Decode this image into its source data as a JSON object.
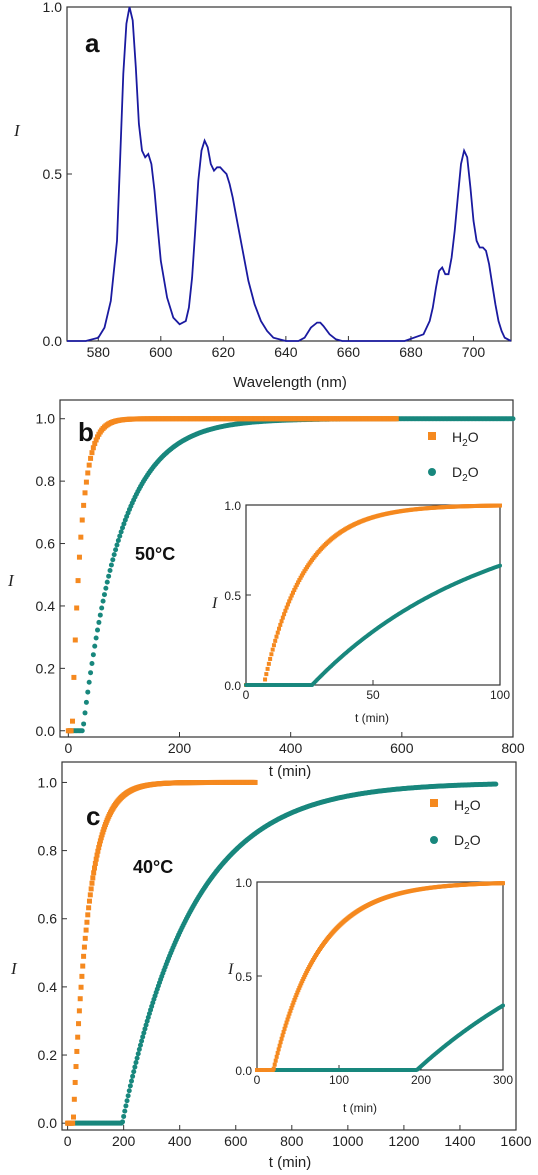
{
  "chart_data": [
    {
      "type": "line",
      "panel_label": "a",
      "xlabel": "Wavelength (nm)",
      "ylabel": "I",
      "xlim": [
        570,
        712
      ],
      "ylim": [
        0,
        1.0
      ],
      "xticks": [
        "580",
        "600",
        "620",
        "640",
        "660",
        "680",
        "700"
      ],
      "yticks": [
        "0.0",
        "0.5",
        "1.0"
      ],
      "color": "#1a1aa0",
      "series": [
        {
          "x": [
            570,
            576,
            580,
            582,
            584,
            586,
            587,
            588,
            589,
            590,
            591,
            592,
            593,
            594,
            595,
            596,
            597,
            598,
            599,
            600,
            602,
            604,
            606,
            608,
            609,
            610,
            611,
            612,
            613,
            614,
            615,
            616,
            617,
            618,
            619,
            620,
            621,
            622,
            623,
            624,
            626,
            628,
            630,
            632,
            634,
            636,
            640,
            644,
            646,
            648,
            650,
            651,
            652,
            654,
            656,
            658,
            662,
            670,
            678,
            684,
            686,
            687,
            688,
            689,
            690,
            691,
            692,
            693,
            694,
            695,
            696,
            697,
            698,
            699,
            700,
            701,
            702,
            703,
            704,
            705,
            706,
            707,
            708,
            709,
            710,
            712
          ],
          "y": [
            0.0,
            0.0,
            0.01,
            0.04,
            0.12,
            0.3,
            0.55,
            0.8,
            0.95,
            1.0,
            0.96,
            0.82,
            0.65,
            0.57,
            0.55,
            0.56,
            0.53,
            0.45,
            0.34,
            0.24,
            0.13,
            0.07,
            0.05,
            0.06,
            0.1,
            0.19,
            0.33,
            0.48,
            0.57,
            0.6,
            0.58,
            0.53,
            0.51,
            0.52,
            0.52,
            0.51,
            0.5,
            0.47,
            0.43,
            0.38,
            0.28,
            0.18,
            0.11,
            0.06,
            0.03,
            0.01,
            0.0,
            0.0,
            0.01,
            0.04,
            0.055,
            0.055,
            0.045,
            0.02,
            0.005,
            0.0,
            0.0,
            0.0,
            0.0,
            0.02,
            0.06,
            0.1,
            0.16,
            0.21,
            0.22,
            0.2,
            0.2,
            0.25,
            0.33,
            0.43,
            0.53,
            0.57,
            0.55,
            0.46,
            0.36,
            0.3,
            0.28,
            0.28,
            0.27,
            0.23,
            0.17,
            0.11,
            0.06,
            0.03,
            0.01,
            0.0
          ]
        }
      ]
    },
    {
      "type": "scatter",
      "panel_label": "b",
      "annotation": "50°C",
      "xlabel": "t (min)",
      "ylabel": "I",
      "xlim": [
        -15,
        800
      ],
      "ylim": [
        -0.02,
        1.06
      ],
      "xticks": [
        "0",
        "200",
        "400",
        "600",
        "800"
      ],
      "yticks": [
        "0.0",
        "0.2",
        "0.4",
        "0.6",
        "0.8",
        "1.0"
      ],
      "legend": [
        {
          "label": "H",
          "sub": "2",
          "tail": "O",
          "marker": "square",
          "color": "#f5891f"
        },
        {
          "label": "D",
          "sub": "2",
          "tail": "O",
          "marker": "circle",
          "color": "#18877d"
        }
      ],
      "series": [
        {
          "color": "#f5891f",
          "lag": 7,
          "tau": 16,
          "t_end": 590
        },
        {
          "color": "#18877d",
          "lag": 26,
          "tau": 68,
          "t_end": 800
        }
      ],
      "inset": {
        "xlabel": "t (min)",
        "ylabel": "I",
        "xlim": [
          0,
          100
        ],
        "ylim": [
          0,
          1.0
        ],
        "xticks": [
          "0",
          "50",
          "100"
        ],
        "yticks": [
          "0.0",
          "0.5",
          "1.0"
        ],
        "series": [
          {
            "color": "#f5891f",
            "lag": 7,
            "tau": 16,
            "t_end": 100
          },
          {
            "color": "#18877d",
            "lag": 26,
            "tau": 68,
            "t_end": 100
          }
        ]
      }
    },
    {
      "type": "scatter",
      "panel_label": "c",
      "annotation": "40°C",
      "xlabel": "t (min)",
      "ylabel": "I",
      "xlim": [
        -20,
        1600
      ],
      "ylim": [
        -0.02,
        1.06
      ],
      "xticks": [
        "0",
        "200",
        "400",
        "600",
        "800",
        "1000",
        "1200",
        "1400",
        "1600"
      ],
      "yticks": [
        "0.0",
        "0.2",
        "0.4",
        "0.6",
        "0.8",
        "1.0"
      ],
      "legend": [
        {
          "label": "H",
          "sub": "2",
          "tail": "O",
          "marker": "square",
          "color": "#f5891f"
        },
        {
          "label": "D",
          "sub": "2",
          "tail": "O",
          "marker": "circle",
          "color": "#18877d"
        }
      ],
      "series": [
        {
          "color": "#f5891f",
          "lag": 20,
          "tau": 55,
          "t_end": 670
        },
        {
          "color": "#18877d",
          "lag": 195,
          "tau": 250,
          "t_end": 1530
        }
      ],
      "inset": {
        "xlabel": "t (min)",
        "ylabel": "I",
        "xlim": [
          0,
          300
        ],
        "ylim": [
          0,
          1.0
        ],
        "xticks": [
          "0",
          "100",
          "200",
          "300"
        ],
        "yticks": [
          "0.0",
          "0.5",
          "1.0"
        ],
        "series": [
          {
            "color": "#f5891f",
            "lag": 20,
            "tau": 55,
            "t_end": 300
          },
          {
            "color": "#18877d",
            "lag": 195,
            "tau": 250,
            "t_end": 300
          }
        ]
      }
    }
  ]
}
